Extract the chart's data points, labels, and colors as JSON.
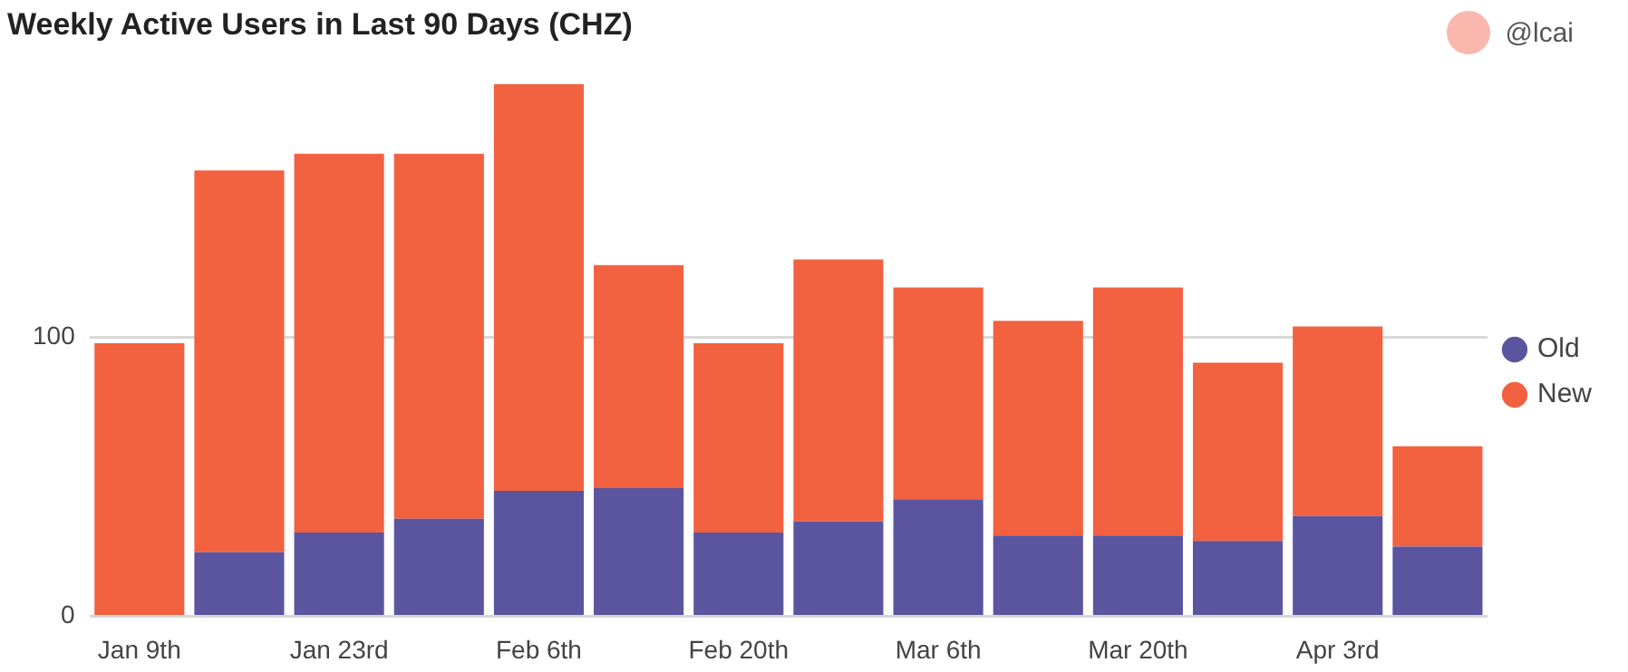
{
  "chart_data": {
    "type": "bar",
    "title": "Weekly Active Users in Last 90 Days (CHZ)",
    "annotations": [
      "@lcai"
    ],
    "categories": [
      "Jan 9th",
      null,
      "Jan 23rd",
      null,
      "Feb 6th",
      null,
      "Feb 20th",
      null,
      "Mar 6th",
      null,
      "Mar 20th",
      null,
      "Apr 3rd",
      null
    ],
    "stacked": true,
    "series": [
      {
        "name": "Old",
        "color": "#5b55a0",
        "values": [
          0,
          23,
          30,
          35,
          45,
          46,
          30,
          34,
          42,
          29,
          29,
          27,
          36,
          25
        ]
      },
      {
        "name": "New",
        "color": "#f26140",
        "values": [
          98,
          137,
          136,
          131,
          146,
          80,
          68,
          94,
          76,
          77,
          89,
          64,
          68,
          36
        ]
      }
    ],
    "ylim": [
      0,
      191
    ],
    "yticks": [
      0,
      100
    ],
    "grid": "y",
    "legend": "right"
  }
}
